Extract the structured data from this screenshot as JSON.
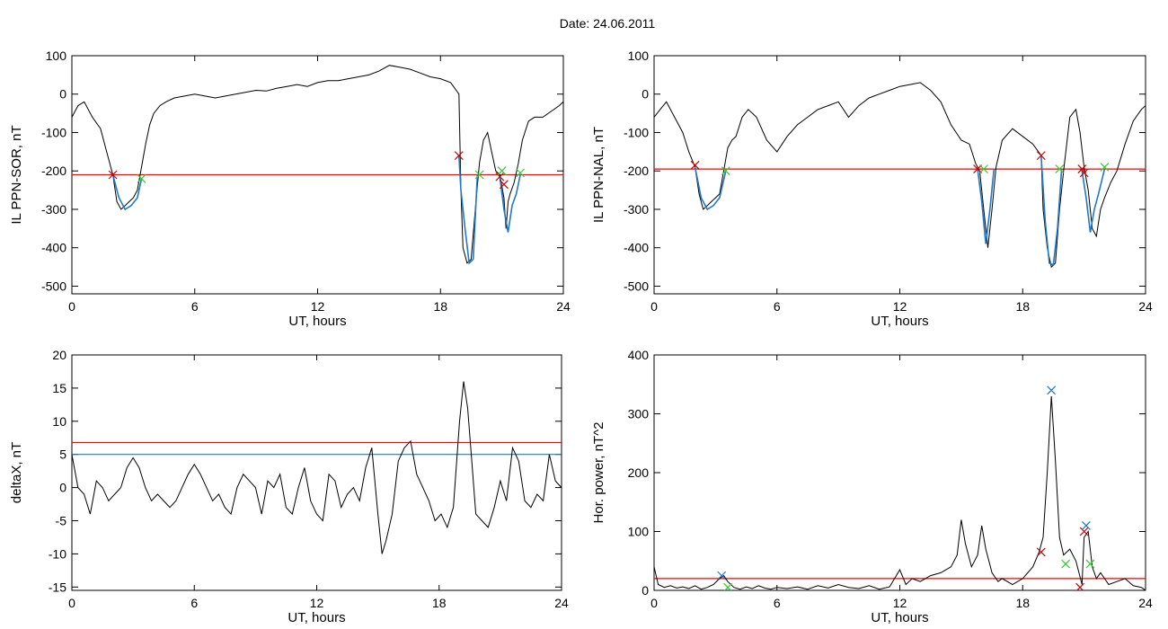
{
  "title": "Date:  24.06.2011",
  "chart_data": [
    {
      "type": "line",
      "ylabel": "IL PPN-SOR, nT",
      "xlabel": "UT, hours",
      "xlim": [
        0,
        24
      ],
      "ylim": [
        -520,
        100
      ],
      "xticks": [
        0,
        6,
        12,
        18,
        24
      ],
      "yticks": [
        100,
        0,
        -100,
        -200,
        -300,
        -400,
        -500
      ],
      "x": [
        0,
        0.3,
        0.6,
        1.0,
        1.4,
        1.7,
        2.0,
        2.2,
        2.4,
        2.6,
        2.8,
        3.0,
        3.2,
        3.4,
        3.6,
        3.8,
        4.0,
        4.3,
        4.6,
        5.0,
        5.5,
        6.0,
        6.5,
        7.0,
        7.5,
        8.0,
        8.5,
        9.0,
        9.5,
        10.0,
        10.5,
        11.0,
        11.5,
        12.0,
        12.5,
        13.0,
        13.5,
        14.0,
        14.5,
        15.0,
        15.5,
        16.0,
        16.5,
        17.0,
        17.5,
        18.0,
        18.5,
        18.9,
        19.0,
        19.1,
        19.3,
        19.5,
        19.7,
        19.9,
        20.1,
        20.3,
        20.5,
        20.7,
        20.9,
        21.1,
        21.2,
        21.3,
        21.4,
        21.6,
        21.8,
        22.0,
        22.3,
        22.6,
        23.0,
        23.4,
        23.8,
        24.0
      ],
      "series": [
        {
          "values": [
            -60,
            -30,
            -20,
            -60,
            -90,
            -150,
            -210,
            -280,
            -300,
            -290,
            -280,
            -270,
            -250,
            -190,
            -130,
            -80,
            -50,
            -30,
            -20,
            -10,
            -5,
            0,
            -5,
            -10,
            -5,
            0,
            5,
            10,
            8,
            15,
            20,
            25,
            20,
            30,
            35,
            35,
            40,
            45,
            50,
            60,
            75,
            70,
            65,
            55,
            45,
            40,
            30,
            0,
            -250,
            -400,
            -440,
            -430,
            -300,
            -180,
            -120,
            -100,
            -150,
            -200,
            -210,
            -270,
            -350,
            -280,
            -260,
            -230,
            -180,
            -120,
            -70,
            -60,
            -60,
            -45,
            -30,
            -20
          ],
          "color": "#000000"
        }
      ],
      "highlight_segments": [
        {
          "x": [
            2.0,
            2.3,
            2.6,
            2.9,
            3.2,
            3.4
          ],
          "y": [
            -210,
            -270,
            -300,
            -290,
            -270,
            -220
          ]
        },
        {
          "x": [
            18.9,
            19.0,
            19.2,
            19.4,
            19.6,
            19.8
          ],
          "y": [
            -160,
            -250,
            -350,
            -440,
            -430,
            -210
          ]
        },
        {
          "x": [
            20.9,
            21.1,
            21.3,
            21.5,
            21.7,
            21.9
          ],
          "y": [
            -215,
            -300,
            -360,
            -290,
            -260,
            -210
          ]
        }
      ],
      "threshold": {
        "y": -210,
        "color": "#ff0000"
      },
      "markers": [
        {
          "x": 2.0,
          "y": -210,
          "color": "#cc0000"
        },
        {
          "x": 3.4,
          "y": -220,
          "color": "#33cc33"
        },
        {
          "x": 18.9,
          "y": -160,
          "color": "#cc0000"
        },
        {
          "x": 19.9,
          "y": -210,
          "color": "#33cc33"
        },
        {
          "x": 20.9,
          "y": -215,
          "color": "#cc0000"
        },
        {
          "x": 21.1,
          "y": -235,
          "color": "#cc0000"
        },
        {
          "x": 21.0,
          "y": -200,
          "color": "#33cc33"
        },
        {
          "x": 21.9,
          "y": -205,
          "color": "#33cc33"
        }
      ]
    },
    {
      "type": "line",
      "ylabel": "IL PPN-NAL, nT",
      "xlabel": "UT, hours",
      "xlim": [
        0,
        24
      ],
      "ylim": [
        -520,
        100
      ],
      "xticks": [
        0,
        6,
        12,
        18,
        24
      ],
      "yticks": [
        100,
        0,
        -100,
        -200,
        -300,
        -400,
        -500
      ],
      "x": [
        0,
        0.3,
        0.6,
        1.0,
        1.4,
        1.7,
        2.0,
        2.2,
        2.4,
        2.6,
        2.8,
        3.0,
        3.2,
        3.4,
        3.6,
        3.8,
        4.0,
        4.3,
        4.6,
        5.0,
        5.5,
        6.0,
        6.5,
        7.0,
        7.5,
        8.0,
        8.5,
        9.0,
        9.5,
        10.0,
        10.5,
        11.0,
        11.5,
        12.0,
        12.5,
        13.0,
        13.5,
        14.0,
        14.5,
        15.0,
        15.4,
        15.7,
        15.9,
        16.1,
        16.3,
        16.5,
        16.7,
        17.0,
        17.5,
        18.0,
        18.5,
        18.9,
        19.0,
        19.2,
        19.4,
        19.6,
        19.8,
        20.0,
        20.3,
        20.6,
        20.8,
        21.0,
        21.2,
        21.4,
        21.6,
        21.8,
        22.0,
        22.3,
        22.6,
        23.0,
        23.4,
        23.8,
        24.0
      ],
      "series": [
        {
          "values": [
            -60,
            -40,
            -20,
            -60,
            -100,
            -150,
            -190,
            -260,
            -300,
            -290,
            -280,
            -270,
            -260,
            -200,
            -140,
            -120,
            -110,
            -60,
            -40,
            -60,
            -120,
            -150,
            -110,
            -80,
            -60,
            -40,
            -30,
            -20,
            -60,
            -30,
            -10,
            0,
            10,
            20,
            25,
            30,
            10,
            -20,
            -80,
            -120,
            -130,
            -180,
            -200,
            -300,
            -400,
            -300,
            -190,
            -120,
            -90,
            -110,
            -130,
            -160,
            -300,
            -400,
            -450,
            -440,
            -300,
            -200,
            -60,
            -40,
            -100,
            -190,
            -250,
            -350,
            -370,
            -300,
            -270,
            -230,
            -200,
            -130,
            -70,
            -40,
            -30
          ],
          "color": "#000000"
        }
      ],
      "highlight_segments": [
        {
          "x": [
            2.0,
            2.3,
            2.6,
            2.9,
            3.2,
            3.5
          ],
          "y": [
            -190,
            -270,
            -300,
            -290,
            -270,
            -200
          ]
        },
        {
          "x": [
            15.8,
            16.0,
            16.2,
            16.4,
            16.6
          ],
          "y": [
            -195,
            -280,
            -390,
            -300,
            -195
          ]
        },
        {
          "x": [
            18.9,
            19.1,
            19.3,
            19.5,
            19.7,
            19.9
          ],
          "y": [
            -160,
            -330,
            -440,
            -445,
            -350,
            -195
          ]
        },
        {
          "x": [
            20.9,
            21.1,
            21.3,
            21.5,
            21.7,
            22.0
          ],
          "y": [
            -200,
            -270,
            -360,
            -300,
            -260,
            -195
          ]
        }
      ],
      "threshold": {
        "y": -195,
        "color": "#ff0000"
      },
      "markers": [
        {
          "x": 2.0,
          "y": -185,
          "color": "#cc0000"
        },
        {
          "x": 3.5,
          "y": -200,
          "color": "#33cc33"
        },
        {
          "x": 15.8,
          "y": -195,
          "color": "#cc0000"
        },
        {
          "x": 16.1,
          "y": -195,
          "color": "#33cc33"
        },
        {
          "x": 18.9,
          "y": -160,
          "color": "#cc0000"
        },
        {
          "x": 19.8,
          "y": -195,
          "color": "#33cc33"
        },
        {
          "x": 20.9,
          "y": -195,
          "color": "#cc0000"
        },
        {
          "x": 21.0,
          "y": -205,
          "color": "#cc0000"
        },
        {
          "x": 22.0,
          "y": -190,
          "color": "#33cc33"
        }
      ]
    },
    {
      "type": "line",
      "ylabel": "deltaX, nT",
      "xlabel": "UT, hours",
      "xlim": [
        0,
        24
      ],
      "ylim": [
        -15.5,
        20
      ],
      "xticks": [
        0,
        6,
        12,
        18,
        24
      ],
      "yticks": [
        20,
        15,
        10,
        5,
        0,
        -5,
        -10,
        -15
      ],
      "x": [
        0,
        0.3,
        0.6,
        0.9,
        1.2,
        1.5,
        1.8,
        2.1,
        2.4,
        2.7,
        3.0,
        3.3,
        3.6,
        3.9,
        4.2,
        4.5,
        4.8,
        5.1,
        5.4,
        5.7,
        6.0,
        6.3,
        6.6,
        6.9,
        7.2,
        7.5,
        7.8,
        8.1,
        8.4,
        8.7,
        9.0,
        9.3,
        9.6,
        9.9,
        10.2,
        10.5,
        10.8,
        11.1,
        11.4,
        11.7,
        12.0,
        12.3,
        12.6,
        12.9,
        13.2,
        13.5,
        13.8,
        14.1,
        14.4,
        14.7,
        15.0,
        15.2,
        15.4,
        15.7,
        16.0,
        16.3,
        16.6,
        16.9,
        17.2,
        17.5,
        17.8,
        18.1,
        18.4,
        18.7,
        19.0,
        19.2,
        19.4,
        19.6,
        19.8,
        20.1,
        20.4,
        20.7,
        21.0,
        21.3,
        21.6,
        21.9,
        22.2,
        22.5,
        22.8,
        23.1,
        23.4,
        23.7,
        24.0
      ],
      "series": [
        {
          "values": [
            5,
            0,
            -1,
            -4,
            1,
            0,
            -2,
            -1,
            0,
            3,
            4.5,
            3,
            0,
            -2,
            -1,
            -2,
            -3,
            -2,
            0,
            2,
            3.5,
            2,
            0,
            -2,
            -1,
            -3,
            -4,
            0,
            2,
            1,
            0,
            -4,
            1,
            0,
            2,
            -3,
            -4,
            0,
            3,
            -2,
            -4,
            -5,
            2,
            1,
            -3,
            -1,
            0,
            -2,
            3,
            6,
            -4,
            -10,
            -8,
            -4,
            4,
            6,
            7,
            2,
            0,
            -2,
            -5,
            -4,
            -6,
            -3,
            10,
            16,
            12,
            4,
            -4,
            -5,
            -6,
            -3,
            1,
            -2,
            6,
            4,
            -2,
            -3,
            -1,
            -2,
            5,
            1,
            0
          ],
          "color": "#000000"
        }
      ],
      "threshold": {
        "y": 6.8,
        "color": "#ff0000"
      },
      "threshold2": {
        "y": 5.0,
        "color": "#1f78c8"
      }
    },
    {
      "type": "line",
      "ylabel": "Hor. power, nT^2",
      "xlabel": "UT, hours",
      "xlim": [
        0,
        24
      ],
      "ylim": [
        0,
        400
      ],
      "xticks": [
        0,
        6,
        12,
        18,
        24
      ],
      "yticks": [
        400,
        300,
        200,
        100,
        0
      ],
      "x": [
        0,
        0.2,
        0.5,
        0.8,
        1.1,
        1.4,
        1.7,
        2.0,
        2.3,
        2.6,
        2.9,
        3.2,
        3.4,
        3.6,
        3.9,
        4.2,
        4.5,
        4.8,
        5.1,
        5.4,
        5.7,
        6.0,
        6.5,
        7.0,
        7.5,
        8.0,
        8.5,
        9.0,
        9.5,
        10.0,
        10.5,
        11.0,
        11.5,
        12.0,
        12.3,
        12.6,
        13.0,
        13.5,
        14.0,
        14.5,
        14.8,
        15.0,
        15.2,
        15.5,
        15.8,
        16.0,
        16.2,
        16.5,
        16.8,
        17.0,
        17.5,
        18.0,
        18.5,
        18.8,
        19.0,
        19.2,
        19.4,
        19.6,
        19.8,
        20.0,
        20.3,
        20.6,
        20.9,
        21.0,
        21.2,
        21.4,
        21.6,
        21.8,
        22.2,
        22.6,
        23.0,
        23.4,
        23.8,
        24.0
      ],
      "series": [
        {
          "values": [
            40,
            10,
            5,
            8,
            4,
            6,
            3,
            8,
            2,
            5,
            10,
            20,
            25,
            15,
            5,
            2,
            6,
            3,
            8,
            4,
            2,
            5,
            3,
            6,
            2,
            8,
            4,
            10,
            5,
            3,
            8,
            2,
            6,
            35,
            10,
            20,
            15,
            25,
            30,
            40,
            60,
            120,
            80,
            40,
            60,
            110,
            70,
            30,
            15,
            20,
            10,
            20,
            40,
            65,
            90,
            200,
            330,
            220,
            90,
            60,
            70,
            50,
            10,
            90,
            100,
            40,
            20,
            30,
            10,
            15,
            20,
            8,
            5,
            0
          ],
          "color": "#000000"
        }
      ],
      "threshold": {
        "y": 20,
        "color": "#ff0000"
      },
      "markers": [
        {
          "x": 3.3,
          "y": 25,
          "color": "#1f78c8"
        },
        {
          "x": 3.6,
          "y": 5,
          "color": "#33cc33"
        },
        {
          "x": 18.9,
          "y": 65,
          "color": "#cc0000"
        },
        {
          "x": 19.4,
          "y": 340,
          "color": "#1f78c8"
        },
        {
          "x": 20.1,
          "y": 45,
          "color": "#33cc33"
        },
        {
          "x": 20.8,
          "y": 5,
          "color": "#cc0000"
        },
        {
          "x": 21.0,
          "y": 100,
          "color": "#cc0000"
        },
        {
          "x": 21.1,
          "y": 110,
          "color": "#1f78c8"
        },
        {
          "x": 21.3,
          "y": 45,
          "color": "#33cc33"
        }
      ]
    }
  ]
}
